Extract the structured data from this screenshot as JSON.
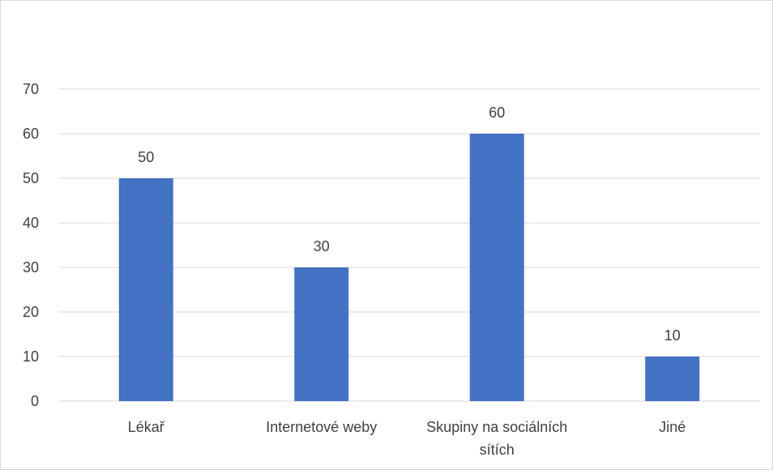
{
  "chart_data": {
    "type": "bar",
    "title": "",
    "xlabel": "",
    "ylabel": "",
    "categories": [
      "Lékař",
      "Internetové weby",
      "Skupiny na sociálních sítích",
      "Jiné"
    ],
    "category_label_lines": [
      [
        "Lékař"
      ],
      [
        "Internetové weby"
      ],
      [
        "Skupiny na sociálních",
        "sítích"
      ],
      [
        "Jiné"
      ]
    ],
    "values": [
      50,
      30,
      60,
      10
    ],
    "data_labels": [
      "50",
      "30",
      "60",
      "10"
    ],
    "ylim": [
      0,
      70
    ],
    "yticks": [
      0,
      10,
      20,
      30,
      40,
      50,
      60,
      70
    ],
    "grid": true,
    "legend": "none",
    "bar_color": "#4472c4",
    "grid_color": "#d9d9d9"
  }
}
